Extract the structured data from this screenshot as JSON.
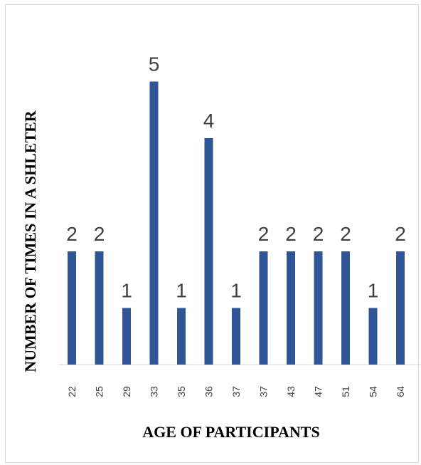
{
  "chart_data": {
    "type": "bar",
    "title": "",
    "xlabel": "AGE OF PARTICIPANTS",
    "ylabel": "NUMBER OF TIMES IN A SHLETER",
    "categories": [
      "22",
      "25",
      "29",
      "33",
      "35",
      "36",
      "37",
      "37",
      "43",
      "47",
      "51",
      "54",
      "64"
    ],
    "values": [
      2,
      2,
      1,
      5,
      1,
      4,
      1,
      2,
      2,
      2,
      2,
      1,
      2
    ],
    "ylim": [
      0,
      5
    ],
    "grid": false,
    "legend": "none",
    "bar_color": "#2f5597",
    "data_labels": true
  }
}
